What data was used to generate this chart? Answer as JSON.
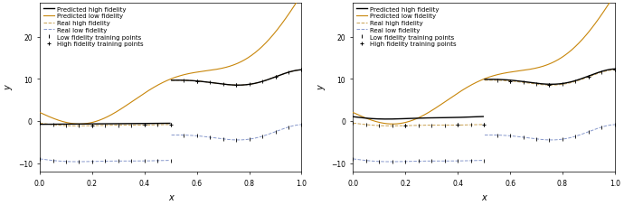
{
  "xlabel": "x",
  "ylabel": "y",
  "xlim": [
    0.0,
    1.0
  ],
  "ylim": [
    -12,
    28
  ],
  "yticks": [
    -10,
    0,
    10,
    20
  ],
  "xticks": [
    0.0,
    0.2,
    0.4,
    0.6,
    0.8,
    1.0
  ],
  "colors": {
    "pred_high": "#000000",
    "pred_low": "#c8860a",
    "real_high": "#c8a050",
    "real_low": "#8899cc",
    "lf_points": "#000000",
    "hf_points": "#000000"
  },
  "background": "#ffffff",
  "legend_fontsize": 5.0,
  "axis_fontsize": 7,
  "tick_fontsize": 5.5
}
